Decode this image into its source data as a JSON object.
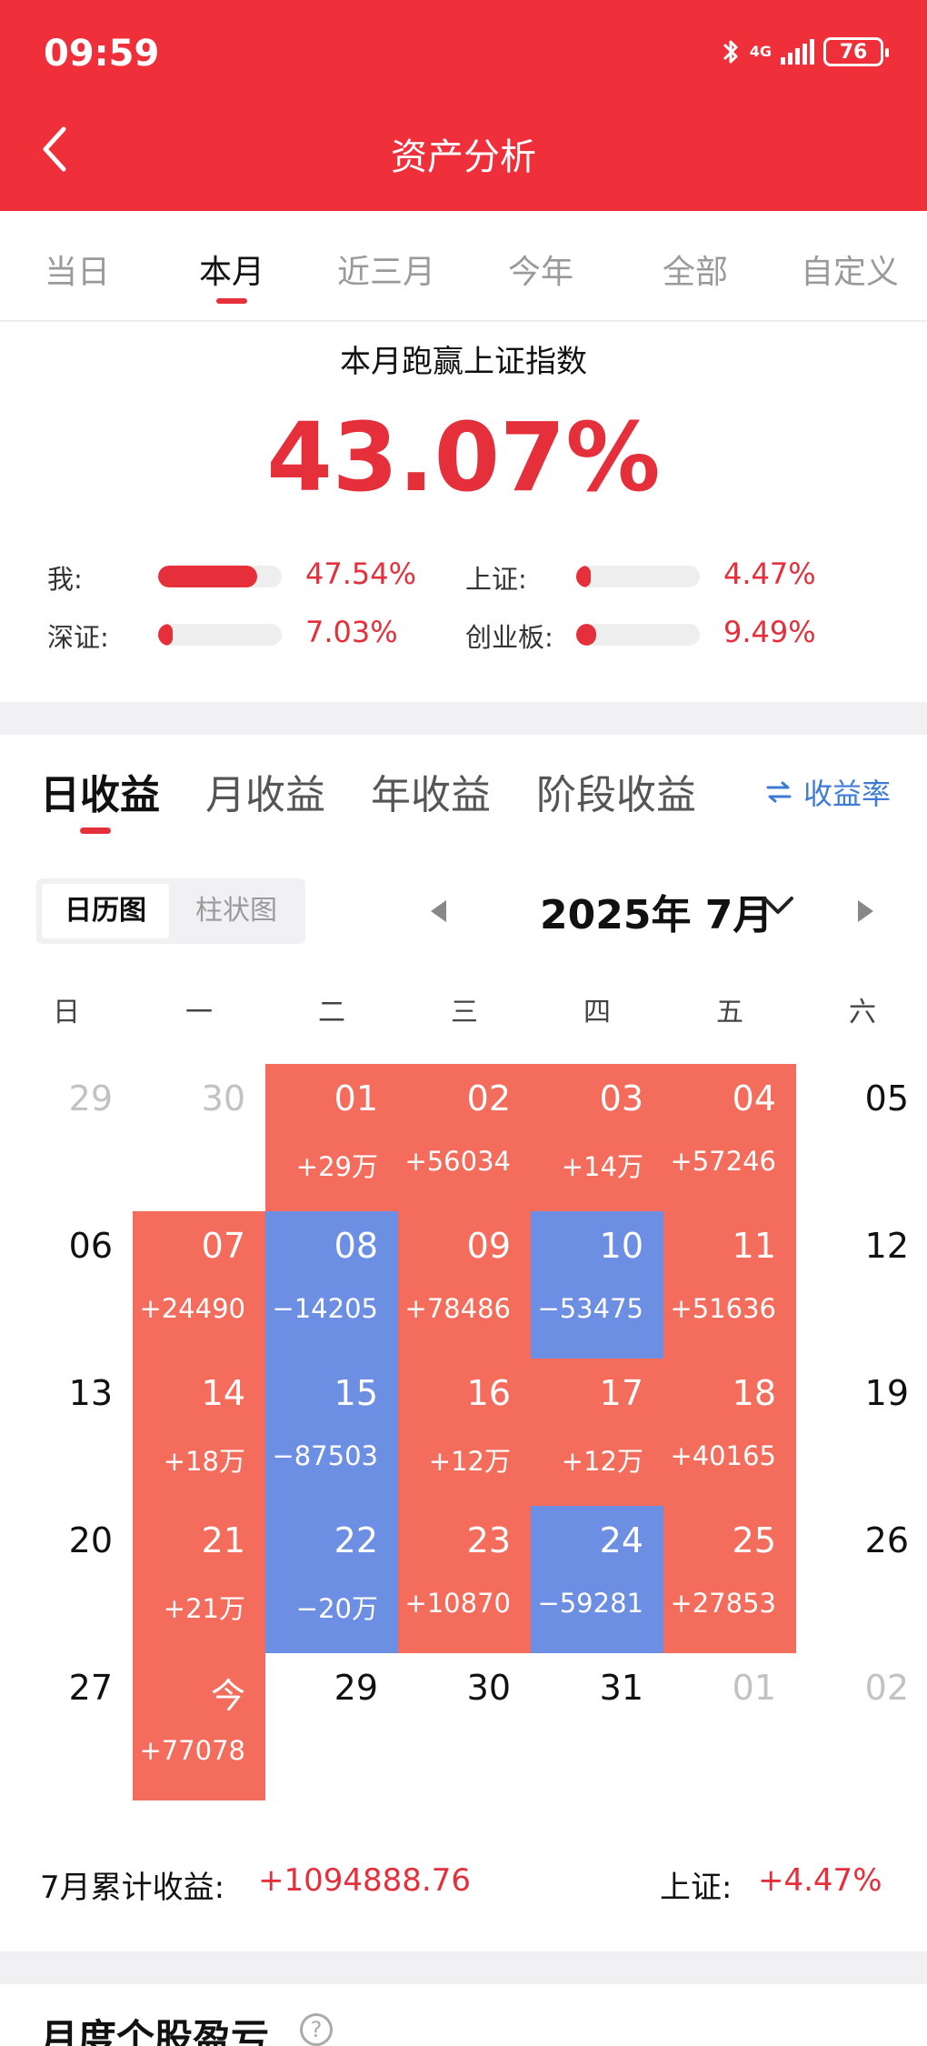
{
  "status_bar": {
    "time": "09:59",
    "network": "4G",
    "battery": "76"
  },
  "header": {
    "title": "资产分析"
  },
  "period_tabs": [
    "当日",
    "本月",
    "近三月",
    "今年",
    "全部",
    "自定义"
  ],
  "summary": {
    "title": "本月跑赢上证指数",
    "value": "43.07%",
    "comparisons": [
      {
        "label": "我:",
        "value": "47.54%",
        "fill": 0.8
      },
      {
        "label": "上证:",
        "value": "4.47%",
        "fill": 0.08
      },
      {
        "label": "深证:",
        "value": "7.03%",
        "fill": 0.12
      },
      {
        "label": "创业板:",
        "value": "9.49%",
        "fill": 0.16
      }
    ]
  },
  "income_tabs": [
    "日收益",
    "月收益",
    "年收益",
    "阶段收益"
  ],
  "rate_link": {
    "icon": "swap-arrows-icon",
    "label": "收益率"
  },
  "view_toggle": [
    "日历图",
    "柱状图"
  ],
  "calendar": {
    "month_label": "2025年 7月",
    "weekdays": [
      "日",
      "一",
      "二",
      "三",
      "四",
      "五",
      "六"
    ],
    "weeks": [
      [
        {
          "d": "29",
          "muted": true
        },
        {
          "d": "30",
          "muted": true
        },
        {
          "d": "01",
          "v": "+29万",
          "s": "up"
        },
        {
          "d": "02",
          "v": "+56034",
          "s": "up"
        },
        {
          "d": "03",
          "v": "+14万",
          "s": "up"
        },
        {
          "d": "04",
          "v": "+57246",
          "s": "up"
        },
        {
          "d": "05"
        }
      ],
      [
        {
          "d": "06"
        },
        {
          "d": "07",
          "v": "+24490",
          "s": "up"
        },
        {
          "d": "08",
          "v": "−14205",
          "s": "down"
        },
        {
          "d": "09",
          "v": "+78486",
          "s": "up"
        },
        {
          "d": "10",
          "v": "−53475",
          "s": "down"
        },
        {
          "d": "11",
          "v": "+51636",
          "s": "up"
        },
        {
          "d": "12"
        }
      ],
      [
        {
          "d": "13"
        },
        {
          "d": "14",
          "v": "+18万",
          "s": "up"
        },
        {
          "d": "15",
          "v": "−87503",
          "s": "down"
        },
        {
          "d": "16",
          "v": "+12万",
          "s": "up"
        },
        {
          "d": "17",
          "v": "+12万",
          "s": "up"
        },
        {
          "d": "18",
          "v": "+40165",
          "s": "up"
        },
        {
          "d": "19"
        }
      ],
      [
        {
          "d": "20"
        },
        {
          "d": "21",
          "v": "+21万",
          "s": "up"
        },
        {
          "d": "22",
          "v": "−20万",
          "s": "down"
        },
        {
          "d": "23",
          "v": "+10870",
          "s": "up"
        },
        {
          "d": "24",
          "v": "−59281",
          "s": "down"
        },
        {
          "d": "25",
          "v": "+27853",
          "s": "up"
        },
        {
          "d": "26"
        }
      ],
      [
        {
          "d": "27"
        },
        {
          "d": "今",
          "v": "+77078",
          "s": "up"
        },
        {
          "d": "29"
        },
        {
          "d": "30"
        },
        {
          "d": "31"
        },
        {
          "d": "01",
          "muted": true
        },
        {
          "d": "02",
          "muted": true
        }
      ]
    ]
  },
  "footer": {
    "cum_label": "7月累计收益:",
    "cum_value": "+1094888.76",
    "index_label": "上证:",
    "index_value": "+4.47%"
  },
  "next_section": {
    "title": "月度个股盈亏",
    "help": "?"
  },
  "colors": {
    "brand_red": "#ef2f3a",
    "gain": "#f46c5b",
    "loss": "#6c8ee3",
    "link": "#3e7bd6"
  }
}
